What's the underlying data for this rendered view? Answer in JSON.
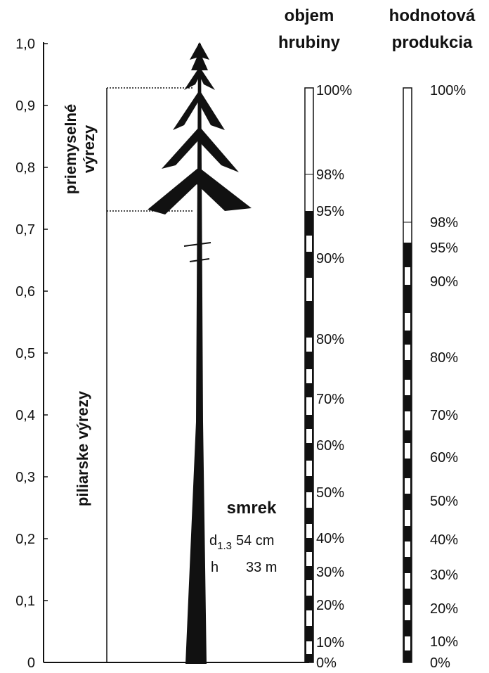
{
  "y_axis": {
    "ticks": [
      "0",
      "0,1",
      "0,2",
      "0,3",
      "0,4",
      "0,5",
      "0,6",
      "0,7",
      "0,8",
      "0,9",
      "1,0"
    ]
  },
  "labels": {
    "industrial": [
      "priemyselné",
      "výrezy"
    ],
    "sawlog": "piliarske výrezy"
  },
  "tree": {
    "species": "smrek",
    "diameter": {
      "symbol": "d",
      "subscript": "1.3",
      "value": "54 cm"
    },
    "height": {
      "symbol": "h",
      "value": "33 m"
    }
  },
  "scales": [
    {
      "header": [
        "objem",
        "hrubiny"
      ],
      "ticks": [
        "100%",
        "98%",
        "95%",
        "90%",
        "80%",
        "70%",
        "60%",
        "50%",
        "40%",
        "30%",
        "20%",
        "10%",
        "0%"
      ]
    },
    {
      "header": [
        "hodnotová",
        "produkcia"
      ],
      "ticks": [
        "100%",
        "98%",
        "95%",
        "90%",
        "80%",
        "70%",
        "60%",
        "50%",
        "40%",
        "30%",
        "20%",
        "10%",
        "0%"
      ]
    }
  ]
}
